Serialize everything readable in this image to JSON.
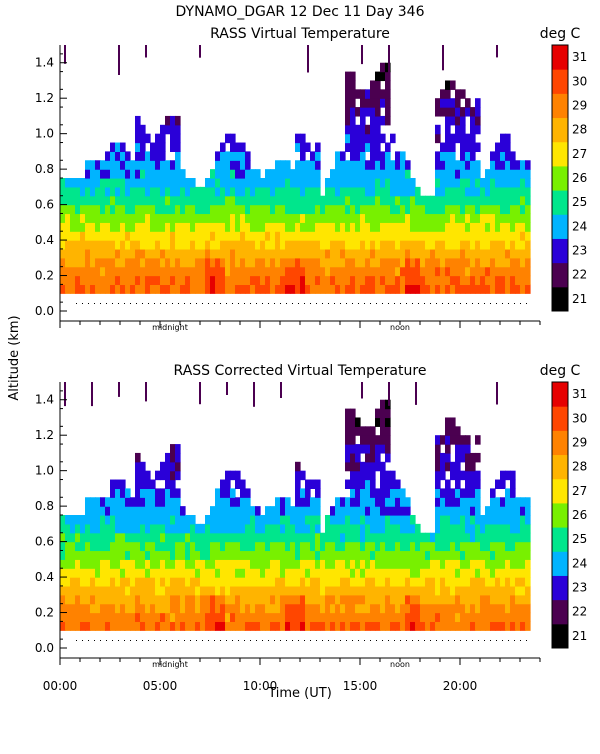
{
  "header": {
    "title": "DYNAMO_DGAR  12 Dec 11 Day 346"
  },
  "chart_data": [
    {
      "type": "heatmap",
      "title": "RASS Virtual Temperature",
      "xlabel": "Time (UT)",
      "ylabel": "Altitude (km)",
      "xlim": [
        0,
        24
      ],
      "ylim": [
        0,
        1.5
      ],
      "y_ticks": [
        "0.0",
        "0.2",
        "0.4",
        "0.6",
        "0.8",
        "1.0",
        "1.2",
        "1.4"
      ],
      "x_markers": [
        {
          "label": "midnight",
          "hour": 5.5
        },
        {
          "label": "noon",
          "hour": 17.0
        }
      ],
      "colorbar": {
        "label": "deg C",
        "min": 21,
        "max": 32,
        "ticks": [
          "21",
          "22",
          "23",
          "24",
          "25",
          "26",
          "27",
          "28",
          "29",
          "30",
          "31"
        ]
      },
      "profile_hours": [
        0,
        1,
        2,
        3,
        4,
        5,
        6,
        7,
        8,
        9,
        10,
        11,
        12,
        13,
        14,
        15,
        16,
        17,
        18,
        19,
        20,
        21,
        22,
        23
      ],
      "profile_altitudes_km": [
        0.1,
        0.2,
        0.3,
        0.4,
        0.5,
        0.6,
        0.7,
        0.8,
        0.9,
        1.0,
        1.1,
        1.2,
        1.3
      ],
      "approx_temperature_by_altitude": [
        30.0,
        29.5,
        28.6,
        27.6,
        26.6,
        25.6,
        24.8,
        24.2,
        23.7,
        23.3,
        23.0,
        22.6,
        22.3
      ]
    },
    {
      "type": "heatmap",
      "title": "RASS Corrected Virtual Temperature",
      "xlabel": "Time (UT)",
      "ylabel": "Altitude (km)",
      "xlim": [
        0,
        24
      ],
      "ylim": [
        0,
        1.5
      ],
      "y_ticks": [
        "0.0",
        "0.2",
        "0.4",
        "0.6",
        "0.8",
        "1.0",
        "1.2",
        "1.4"
      ],
      "x_markers": [
        {
          "label": "midnight",
          "hour": 5.5
        },
        {
          "label": "noon",
          "hour": 17.0
        }
      ],
      "x_ticks": [
        "00:00",
        "05:00",
        "10:00",
        "15:00",
        "20:00"
      ],
      "colorbar": {
        "label": "deg C",
        "min": 21,
        "max": 32,
        "ticks": [
          "21",
          "22",
          "23",
          "24",
          "25",
          "26",
          "27",
          "28",
          "29",
          "30",
          "31"
        ]
      },
      "profile_hours": [
        0,
        1,
        2,
        3,
        4,
        5,
        6,
        7,
        8,
        9,
        10,
        11,
        12,
        13,
        14,
        15,
        16,
        17,
        18,
        19,
        20,
        21,
        22,
        23
      ],
      "profile_altitudes_km": [
        0.1,
        0.2,
        0.3,
        0.4,
        0.5,
        0.6,
        0.7,
        0.8,
        0.9,
        1.0,
        1.1,
        1.2,
        1.3
      ],
      "approx_temperature_by_altitude": [
        29.8,
        29.2,
        28.4,
        27.4,
        26.4,
        25.5,
        24.7,
        24.1,
        23.6,
        23.2,
        22.9,
        22.5,
        22.2
      ]
    }
  ],
  "colors": {
    "21": "#000000",
    "22": "#4b0050",
    "23": "#2a00d8",
    "24": "#00b4ff",
    "25": "#00e68c",
    "26": "#78f000",
    "27": "#ffe600",
    "28": "#ffb400",
    "29": "#ff8200",
    "30": "#ff4600",
    "31": "#e60000"
  }
}
